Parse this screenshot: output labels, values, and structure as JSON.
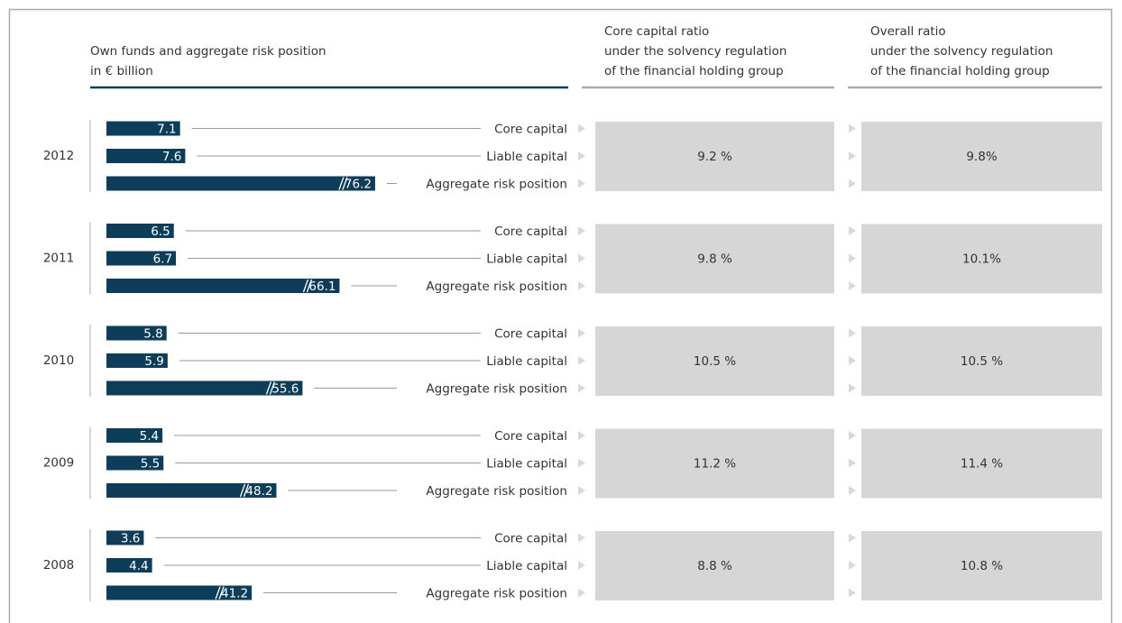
{
  "chart_data": {
    "type": "bar",
    "headers": [
      [
        "Own funds and aggregate risk position",
        "in € billion"
      ],
      [
        "Core capital ratio",
        "under the solvency regulation",
        "of the financial holding group"
      ],
      [
        "Overall ratio",
        "under the solvency regulation",
        "of the financial holding group"
      ]
    ],
    "categories": [
      "2012",
      "2011",
      "2010",
      "2009",
      "2008"
    ],
    "series": [
      {
        "name": "Core capital",
        "color": "#0d3d59",
        "values": [
          7.1,
          6.5,
          5.8,
          5.4,
          3.6
        ]
      },
      {
        "name": "Liable capital",
        "color": "#0d3d59",
        "values": [
          7.6,
          6.7,
          5.9,
          5.5,
          4.4
        ]
      },
      {
        "name": "Aggregate risk position",
        "color": "#0d3d59",
        "values": [
          76.2,
          66.1,
          55.6,
          48.2,
          41.2
        ]
      }
    ],
    "ratios": [
      {
        "values": [
          9.2,
          9.8,
          10.5,
          11.2,
          8.8
        ],
        "value_labels": [
          "9.2 %",
          "9.8 %",
          "10.5 %",
          "11.2 %",
          "8.8 %"
        ]
      },
      {
        "values": [
          9.8,
          10.1,
          10.5,
          11.4,
          10.8
        ],
        "value_labels": [
          "9.8%",
          "10.1%",
          "10.5 %",
          "11.4 %",
          "10.8 %"
        ]
      }
    ]
  }
}
